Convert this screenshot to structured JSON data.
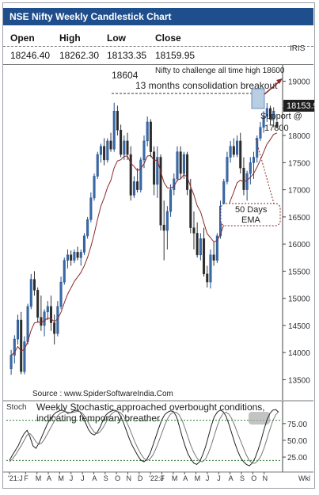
{
  "chart_data": [
    {
      "type": "candlestick",
      "title": "NSE Nifty Weekly Candlestick Chart",
      "ohlc": {
        "headers": [
          "Open",
          "High",
          "Low",
          "Close"
        ],
        "values": [
          "18246.40",
          "18262.30",
          "18133.35",
          "18159.95"
        ]
      },
      "iris_label": "IRIS",
      "last_price_label": "18153.9",
      "y_ticks": [
        19000,
        18500,
        18000,
        17500,
        17000,
        16500,
        16000,
        15500,
        15000,
        14500,
        14000,
        13500
      ],
      "ylim": [
        13200,
        19300
      ],
      "x_months": [
        "'21:J",
        "F",
        "M",
        "A",
        "M",
        "J",
        "J",
        "A",
        "S",
        "O",
        "N",
        "D",
        "'22:J",
        "F",
        "M",
        "A",
        "M",
        "J",
        "J",
        "A",
        "S",
        "O",
        "N"
      ],
      "x_unit_label": "Wkl",
      "annotations": {
        "challenge": "Nifty to challenge all time high 18600",
        "high_value": "18604",
        "consolidation": "13 months consolidation breakout",
        "support": "Support @ 17800",
        "ema": "50 Days EMA",
        "source": "Source : www.SpiderSoftwareIndia.Com"
      },
      "candles": [
        {
          "o": 13700,
          "h": 14050,
          "l": 13590,
          "c": 13950
        },
        {
          "o": 13950,
          "h": 14320,
          "l": 13800,
          "c": 14250
        },
        {
          "o": 14250,
          "h": 14700,
          "l": 14150,
          "c": 14600
        },
        {
          "o": 14600,
          "h": 14750,
          "l": 13600,
          "c": 13650
        },
        {
          "o": 13650,
          "h": 14300,
          "l": 13600,
          "c": 14200
        },
        {
          "o": 14200,
          "h": 14900,
          "l": 14150,
          "c": 14850
        },
        {
          "o": 14850,
          "h": 15450,
          "l": 14800,
          "c": 15350
        },
        {
          "o": 15350,
          "h": 15500,
          "l": 15050,
          "c": 15150
        },
        {
          "o": 15150,
          "h": 15200,
          "l": 14550,
          "c": 14650
        },
        {
          "o": 14650,
          "h": 15050,
          "l": 14400,
          "c": 14500
        },
        {
          "o": 14500,
          "h": 14800,
          "l": 14300,
          "c": 14750
        },
        {
          "o": 14750,
          "h": 14950,
          "l": 14600,
          "c": 14850
        },
        {
          "o": 14850,
          "h": 15050,
          "l": 14400,
          "c": 14550
        },
        {
          "o": 14550,
          "h": 14700,
          "l": 14150,
          "c": 14350
        },
        {
          "o": 14350,
          "h": 14950,
          "l": 14300,
          "c": 14850
        },
        {
          "o": 14850,
          "h": 15400,
          "l": 14800,
          "c": 15300
        },
        {
          "o": 15300,
          "h": 15750,
          "l": 15250,
          "c": 15700
        },
        {
          "o": 15700,
          "h": 15900,
          "l": 15550,
          "c": 15800
        },
        {
          "o": 15800,
          "h": 15880,
          "l": 15600,
          "c": 15700
        },
        {
          "o": 15700,
          "h": 15900,
          "l": 15650,
          "c": 15850
        },
        {
          "o": 15850,
          "h": 15950,
          "l": 15700,
          "c": 15750
        },
        {
          "o": 15750,
          "h": 15900,
          "l": 15600,
          "c": 15850
        },
        {
          "o": 15850,
          "h": 16200,
          "l": 15800,
          "c": 16150
        },
        {
          "o": 16150,
          "h": 16500,
          "l": 16100,
          "c": 16450
        },
        {
          "o": 16450,
          "h": 16950,
          "l": 16400,
          "c": 16850
        },
        {
          "o": 16850,
          "h": 17300,
          "l": 16800,
          "c": 17250
        },
        {
          "o": 17250,
          "h": 17700,
          "l": 17200,
          "c": 17650
        },
        {
          "o": 17650,
          "h": 17850,
          "l": 17500,
          "c": 17800
        },
        {
          "o": 17800,
          "h": 17950,
          "l": 17450,
          "c": 17550
        },
        {
          "o": 17550,
          "h": 17950,
          "l": 17500,
          "c": 17900
        },
        {
          "o": 17900,
          "h": 18050,
          "l": 17700,
          "c": 17750
        },
        {
          "o": 17750,
          "h": 18604,
          "l": 17700,
          "c": 18450
        },
        {
          "o": 18450,
          "h": 18550,
          "l": 18000,
          "c": 18100
        },
        {
          "o": 18100,
          "h": 18200,
          "l": 17600,
          "c": 17650
        },
        {
          "o": 17650,
          "h": 18000,
          "l": 17550,
          "c": 17900
        },
        {
          "o": 17900,
          "h": 18050,
          "l": 17550,
          "c": 17650
        },
        {
          "o": 17650,
          "h": 17800,
          "l": 16800,
          "c": 16900
        },
        {
          "o": 16900,
          "h": 17250,
          "l": 16850,
          "c": 17150
        },
        {
          "o": 17150,
          "h": 17400,
          "l": 16950,
          "c": 17000
        },
        {
          "o": 17000,
          "h": 17600,
          "l": 16950,
          "c": 17550
        },
        {
          "o": 17550,
          "h": 18000,
          "l": 17400,
          "c": 17900
        },
        {
          "o": 17900,
          "h": 18350,
          "l": 17800,
          "c": 18250
        },
        {
          "o": 18250,
          "h": 18300,
          "l": 17600,
          "c": 17700
        },
        {
          "o": 17700,
          "h": 17800,
          "l": 16900,
          "c": 17100
        },
        {
          "o": 17100,
          "h": 17800,
          "l": 16850,
          "c": 17600
        },
        {
          "o": 17600,
          "h": 17650,
          "l": 16250,
          "c": 16350
        },
        {
          "o": 16350,
          "h": 16800,
          "l": 15700,
          "c": 16250
        },
        {
          "o": 16250,
          "h": 16700,
          "l": 15900,
          "c": 16600
        },
        {
          "o": 16600,
          "h": 17100,
          "l": 16500,
          "c": 17000
        },
        {
          "o": 17000,
          "h": 17300,
          "l": 16900,
          "c": 17200
        },
        {
          "o": 17200,
          "h": 17800,
          "l": 17150,
          "c": 17700
        },
        {
          "o": 17700,
          "h": 17800,
          "l": 17200,
          "c": 17300
        },
        {
          "o": 17300,
          "h": 17700,
          "l": 17200,
          "c": 17650
        },
        {
          "o": 17650,
          "h": 17700,
          "l": 16900,
          "c": 17000
        },
        {
          "o": 17000,
          "h": 17200,
          "l": 16200,
          "c": 16300
        },
        {
          "o": 16300,
          "h": 16600,
          "l": 15900,
          "c": 16200
        },
        {
          "o": 16200,
          "h": 16400,
          "l": 15750,
          "c": 15800
        },
        {
          "o": 15800,
          "h": 16200,
          "l": 15700,
          "c": 16100
        },
        {
          "o": 16100,
          "h": 16300,
          "l": 15400,
          "c": 15450
        },
        {
          "o": 15450,
          "h": 15600,
          "l": 15200,
          "c": 15300
        },
        {
          "o": 15300,
          "h": 15900,
          "l": 15180,
          "c": 15800
        },
        {
          "o": 15800,
          "h": 16050,
          "l": 15600,
          "c": 15700
        },
        {
          "o": 15700,
          "h": 16200,
          "l": 15650,
          "c": 16150
        },
        {
          "o": 16150,
          "h": 16800,
          "l": 16100,
          "c": 16700
        },
        {
          "o": 16700,
          "h": 17200,
          "l": 16650,
          "c": 17150
        },
        {
          "o": 17150,
          "h": 17700,
          "l": 17100,
          "c": 17600
        },
        {
          "o": 17600,
          "h": 17900,
          "l": 17500,
          "c": 17800
        },
        {
          "o": 17800,
          "h": 17950,
          "l": 17600,
          "c": 17650
        },
        {
          "o": 17650,
          "h": 18000,
          "l": 17600,
          "c": 17900
        },
        {
          "o": 17900,
          "h": 18050,
          "l": 17300,
          "c": 17400
        },
        {
          "o": 17400,
          "h": 17600,
          "l": 16900,
          "c": 17000
        },
        {
          "o": 17000,
          "h": 17350,
          "l": 16800,
          "c": 17300
        },
        {
          "o": 17300,
          "h": 17600,
          "l": 17100,
          "c": 17500
        },
        {
          "o": 17500,
          "h": 17700,
          "l": 17200,
          "c": 17600
        },
        {
          "o": 17600,
          "h": 18000,
          "l": 17500,
          "c": 17950
        },
        {
          "o": 17950,
          "h": 18250,
          "l": 17900,
          "c": 18150
        },
        {
          "o": 18150,
          "h": 18450,
          "l": 18050,
          "c": 18350
        },
        {
          "o": 18350,
          "h": 18600,
          "l": 18250,
          "c": 18500
        },
        {
          "o": 18500,
          "h": 18550,
          "l": 18200,
          "c": 18300
        },
        {
          "o": 18300,
          "h": 18520,
          "l": 18150,
          "c": 18450
        },
        {
          "o": 18246,
          "h": 18262,
          "l": 18133,
          "c": 18160
        }
      ]
    },
    {
      "type": "line",
      "indicator_label": "Stoch",
      "annotation": "Weekly Stochastic approached overbought conditions, indicating temporary breather",
      "y_ticks": [
        75,
        50,
        25
      ],
      "levels": [
        80,
        20
      ],
      "ylim": [
        5,
        102
      ],
      "k": [
        20,
        28,
        35,
        42,
        52,
        60,
        65,
        55,
        42,
        38,
        45,
        55,
        65,
        75,
        82,
        88,
        92,
        94,
        95,
        93,
        90,
        92,
        94,
        95,
        93,
        86,
        76,
        66,
        60,
        58,
        62,
        70,
        80,
        88,
        92,
        94,
        95,
        93,
        86,
        76,
        64,
        52,
        42,
        34,
        26,
        20,
        18,
        22,
        30,
        42,
        55,
        68,
        80,
        88,
        92,
        94,
        93,
        86,
        72,
        56,
        42,
        30,
        22,
        16,
        14,
        18,
        28,
        40,
        56,
        72,
        85,
        92,
        95,
        93,
        86,
        74,
        60,
        46,
        34,
        24,
        18,
        14,
        12,
        16,
        24,
        36,
        50,
        66,
        80,
        90,
        95,
        96,
        92
      ],
      "d": [
        18,
        22,
        28,
        35,
        42,
        50,
        58,
        60,
        55,
        48,
        44,
        46,
        52,
        60,
        68,
        76,
        84,
        89,
        92,
        93,
        92,
        91,
        92,
        93,
        93,
        90,
        84,
        76,
        68,
        62,
        60,
        63,
        69,
        77,
        85,
        90,
        93,
        93,
        91,
        86,
        78,
        68,
        57,
        46,
        37,
        29,
        23,
        20,
        22,
        28,
        37,
        48,
        60,
        72,
        82,
        89,
        92,
        92,
        88,
        80,
        68,
        55,
        42,
        32,
        24,
        19,
        18,
        22,
        31,
        43,
        57,
        71,
        83,
        90,
        92,
        89,
        82,
        72,
        60,
        49,
        38,
        28,
        20,
        16,
        16,
        20,
        27,
        38,
        52,
        66,
        79,
        88,
        93
      ]
    }
  ]
}
